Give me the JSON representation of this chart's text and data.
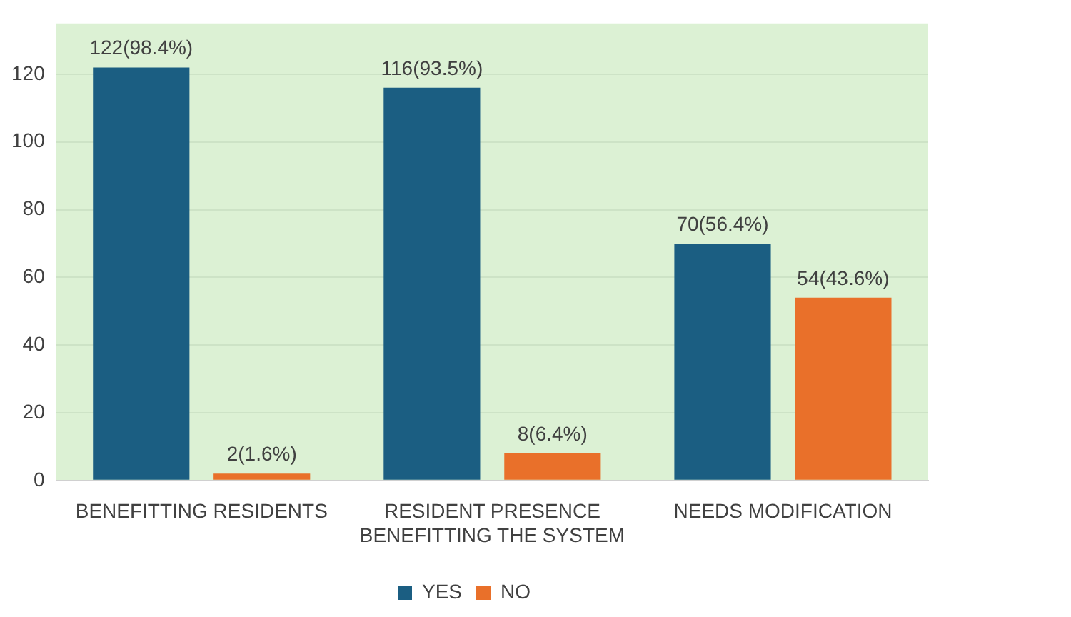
{
  "chart_data": {
    "type": "bar",
    "categories": [
      "BENEFITTING RESIDENTS",
      "RESIDENT PRESENCE BENEFITTING THE SYSTEM",
      "NEEDS MODIFICATION"
    ],
    "series": [
      {
        "name": "YES",
        "color": "#1b5e82",
        "values": [
          122,
          116,
          70
        ],
        "value_labels": [
          "122(98.4%)",
          "116(93.5%)",
          "70(56.4%)"
        ]
      },
      {
        "name": "NO",
        "color": "#e9702a",
        "values": [
          2,
          8,
          54
        ],
        "value_labels": [
          "2(1.6%)",
          "8(6.4%)",
          "54(43.6%)"
        ]
      }
    ],
    "ylim": [
      0,
      135
    ],
    "yticks": [
      0,
      20,
      40,
      60,
      80,
      100,
      120
    ],
    "grid": "y",
    "legend": "bottom"
  }
}
